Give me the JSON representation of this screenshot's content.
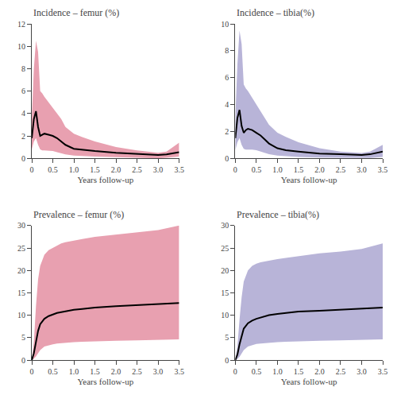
{
  "chart_data": [
    {
      "type": "line",
      "title": "Incidence – femur (%)",
      "xlabel": "Years follow-up",
      "x": [
        0,
        0.05,
        0.1,
        0.15,
        0.2,
        0.25,
        0.3,
        0.4,
        0.5,
        0.6,
        0.7,
        0.8,
        1.0,
        1.2,
        1.5,
        2.0,
        2.5,
        3.0,
        3.2,
        3.5
      ],
      "series": [
        {
          "type": "band",
          "color": "#e8a0b0",
          "lower": [
            0.8,
            1.5,
            1.8,
            1.2,
            0.8,
            0.7,
            0.7,
            0.7,
            0.65,
            0.55,
            0.45,
            0.35,
            0.25,
            0.2,
            0.15,
            0.1,
            0.05,
            0.0,
            0.05,
            0.15
          ],
          "upper": [
            3.5,
            8.0,
            10.5,
            9.5,
            6.0,
            5.8,
            5.5,
            5.0,
            4.5,
            4.0,
            3.5,
            2.8,
            2.2,
            1.9,
            1.5,
            1.0,
            0.7,
            0.5,
            0.6,
            1.4
          ]
        },
        {
          "type": "line",
          "color": "#000000",
          "values": [
            1.8,
            3.5,
            4.2,
            2.8,
            2.0,
            2.1,
            2.2,
            2.1,
            2.0,
            1.8,
            1.5,
            1.2,
            0.85,
            0.75,
            0.65,
            0.5,
            0.4,
            0.3,
            0.35,
            0.55
          ]
        }
      ],
      "xlim": [
        0,
        3.5
      ],
      "xticks": [
        0,
        0.5,
        {
          "value": 1.0,
          "label": "1.0"
        },
        1.5,
        {
          "value": 2.0,
          "label": "2.0"
        },
        2.5,
        {
          "value": 3.0,
          "label": "3.0"
        },
        3.5
      ],
      "ylim": [
        0,
        12
      ],
      "yticks": [
        0,
        2,
        4,
        6,
        8,
        10,
        12
      ],
      "grid": false
    },
    {
      "type": "line",
      "title": "Incidence – tibia(%)",
      "xlabel": "Years follow-up",
      "x": [
        0,
        0.05,
        0.1,
        0.15,
        0.2,
        0.25,
        0.3,
        0.4,
        0.5,
        0.6,
        0.7,
        0.8,
        1.0,
        1.2,
        1.5,
        2.0,
        2.5,
        3.0,
        3.2,
        3.5
      ],
      "series": [
        {
          "type": "band",
          "color": "#b8b4d8",
          "lower": [
            0.6,
            1.2,
            1.5,
            1.0,
            0.7,
            0.65,
            0.65,
            0.65,
            0.6,
            0.5,
            0.4,
            0.3,
            0.2,
            0.15,
            0.1,
            0.05,
            0.02,
            0.0,
            0.02,
            0.1
          ],
          "upper": [
            3.0,
            7.0,
            9.5,
            8.5,
            5.5,
            5.2,
            5.0,
            4.5,
            4.0,
            3.5,
            3.0,
            2.5,
            1.9,
            1.6,
            1.2,
            0.75,
            0.5,
            0.4,
            0.5,
            1.0
          ]
        },
        {
          "type": "line",
          "color": "#000000",
          "values": [
            1.5,
            3.0,
            3.6,
            2.4,
            1.9,
            2.1,
            2.2,
            2.1,
            1.9,
            1.7,
            1.4,
            1.1,
            0.75,
            0.6,
            0.5,
            0.35,
            0.3,
            0.25,
            0.3,
            0.5
          ]
        }
      ],
      "xlim": [
        0,
        3.5
      ],
      "xticks": [
        0,
        0.5,
        {
          "value": 1.0,
          "label": "1.0"
        },
        1.5,
        {
          "value": 2.0,
          "label": "2.0"
        },
        2.5,
        {
          "value": 3.0,
          "label": "3.0"
        },
        3.5
      ],
      "ylim": [
        0,
        10
      ],
      "yticks": [
        0,
        2,
        4,
        6,
        8,
        10
      ],
      "grid": false
    },
    {
      "type": "line",
      "title": "Prevalence – femur (%)",
      "xlabel": "Years follow-up",
      "x": [
        0,
        0.05,
        0.1,
        0.15,
        0.2,
        0.3,
        0.4,
        0.5,
        0.6,
        0.7,
        0.8,
        1.0,
        1.2,
        1.5,
        2.0,
        2.5,
        3.0,
        3.5
      ],
      "series": [
        {
          "type": "band",
          "color": "#e8a0b0",
          "lower": [
            0,
            0.3,
            0.8,
            1.5,
            2.2,
            3.0,
            3.3,
            3.5,
            3.7,
            3.8,
            3.9,
            4.0,
            4.1,
            4.2,
            4.3,
            4.4,
            4.5,
            4.6
          ],
          "upper": [
            0,
            4.0,
            12.0,
            18.0,
            21.0,
            23.5,
            24.5,
            25.0,
            25.5,
            26.0,
            26.3,
            26.7,
            27.0,
            27.5,
            28.0,
            28.5,
            29.0,
            30.0
          ]
        },
        {
          "type": "line",
          "color": "#000000",
          "values": [
            0,
            1.5,
            4.0,
            6.5,
            8.0,
            9.2,
            9.8,
            10.2,
            10.5,
            10.7,
            10.9,
            11.2,
            11.4,
            11.7,
            12.0,
            12.2,
            12.4,
            12.7
          ]
        }
      ],
      "xlim": [
        0,
        3.5
      ],
      "xticks": [
        0,
        0.5,
        {
          "value": 1.0,
          "label": "1.0"
        },
        1.5,
        {
          "value": 2.0,
          "label": "2.0"
        },
        2.5,
        {
          "value": 3.0,
          "label": "3.0"
        },
        3.5
      ],
      "ylim": [
        0,
        30
      ],
      "yticks": [
        0,
        5,
        10,
        15,
        20,
        25,
        30
      ],
      "grid": false
    },
    {
      "type": "line",
      "title": "Prevalence – tibia(%)",
      "xlabel": "Years follow-up",
      "x": [
        0,
        0.05,
        0.1,
        0.15,
        0.2,
        0.3,
        0.4,
        0.5,
        0.6,
        0.7,
        0.8,
        1.0,
        1.2,
        1.5,
        2.0,
        2.5,
        3.0,
        3.5
      ],
      "series": [
        {
          "type": "band",
          "color": "#b8b4d8",
          "lower": [
            0,
            0.2,
            0.7,
            1.5,
            2.2,
            3.0,
            3.3,
            3.6,
            3.7,
            3.8,
            3.9,
            4.0,
            4.1,
            4.2,
            4.3,
            4.4,
            4.5,
            4.6
          ],
          "upper": [
            0,
            3.0,
            9.0,
            14.0,
            17.5,
            20.0,
            21.0,
            21.5,
            21.8,
            22.0,
            22.2,
            22.5,
            22.8,
            23.2,
            23.8,
            24.2,
            24.8,
            26.0
          ]
        },
        {
          "type": "line",
          "color": "#000000",
          "values": [
            0,
            1.2,
            3.5,
            5.5,
            7.0,
            8.2,
            8.8,
            9.2,
            9.5,
            9.8,
            10.0,
            10.3,
            10.5,
            10.8,
            11.0,
            11.2,
            11.4,
            11.7
          ]
        }
      ],
      "xlim": [
        0,
        3.5
      ],
      "xticks": [
        0,
        0.5,
        {
          "value": 1.0,
          "label": "1.0"
        },
        1.5,
        {
          "value": 2.0,
          "label": "2.0"
        },
        2.5,
        {
          "value": 3.0,
          "label": "3.0"
        },
        3.5
      ],
      "ylim": [
        0,
        30
      ],
      "yticks": [
        0,
        5,
        10,
        15,
        20,
        25,
        30
      ],
      "grid": false
    }
  ]
}
